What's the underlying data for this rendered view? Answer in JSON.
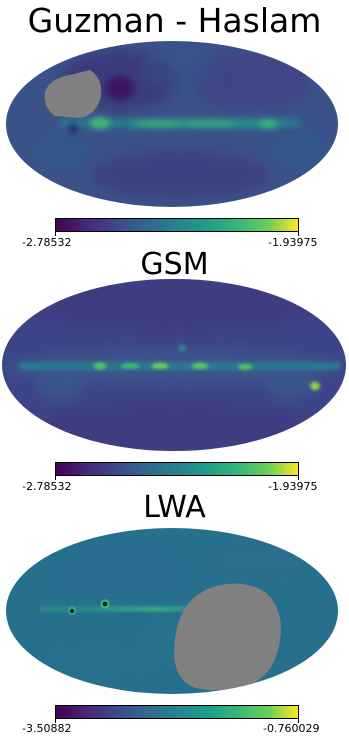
{
  "panels": [
    {
      "title": "Guzman - Haslam",
      "colorbar": {
        "min": "-2.78532",
        "max": "-1.93975"
      }
    },
    {
      "title": "GSM",
      "colorbar": {
        "min": "-2.78532",
        "max": "-1.93975"
      }
    },
    {
      "title": "LWA",
      "colorbar": {
        "min": "-3.50882",
        "max": "-0.760029"
      }
    }
  ],
  "colors": {
    "viridis_dark": "#440154",
    "viridis_blue": "#31688e",
    "viridis_teal": "#21918c",
    "viridis_green": "#35b779",
    "viridis_yellow": "#fde725",
    "mask_gray": "#808080"
  }
}
